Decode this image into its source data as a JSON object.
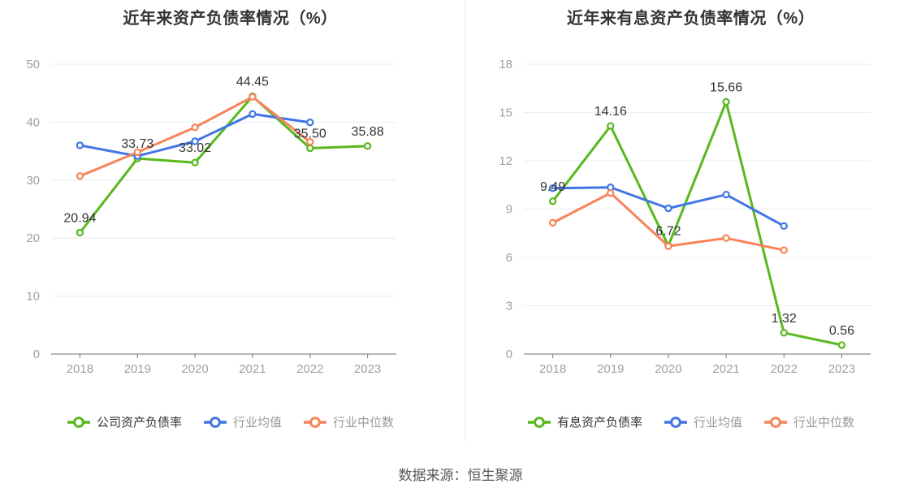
{
  "page": {
    "source_text": "数据来源：恒生聚源"
  },
  "colors": {
    "company_green": "#58b81e",
    "industry_avg_blue": "#4176e5",
    "industry_median_orange": "#f8835a",
    "grid": "#e7edf6",
    "axis": "#8c8c8c",
    "axis_label": "#9aa1a9",
    "data_label": "#333333"
  },
  "chart_data": [
    {
      "type": "line",
      "title": "近年来资产负债率情况（%）",
      "categories": [
        "2018",
        "2019",
        "2020",
        "2021",
        "2022",
        "2023"
      ],
      "ylim": [
        0,
        50
      ],
      "yticks": [
        0,
        10,
        20,
        30,
        40,
        50
      ],
      "grid": true,
      "legend_position": "bottom",
      "series": [
        {
          "name": "公司资产负债率",
          "color": "#58b81e",
          "values": [
            20.94,
            33.73,
            33.02,
            44.45,
            35.5,
            35.88
          ],
          "labels": [
            "20.94",
            "33.73",
            "33.02",
            "44.45",
            "35.50",
            "35.88"
          ]
        },
        {
          "name": "行业均值",
          "color": "#4176e5",
          "values": [
            36.0,
            34.15,
            36.7,
            41.4,
            39.95
          ]
        },
        {
          "name": "行业中位数",
          "color": "#f8835a",
          "values": [
            30.7,
            34.8,
            39.1,
            44.35,
            36.6
          ]
        }
      ]
    },
    {
      "type": "line",
      "title": "近年来有息资产负债率情况（%）",
      "categories": [
        "2018",
        "2019",
        "2020",
        "2021",
        "2022",
        "2023"
      ],
      "ylim": [
        0,
        18
      ],
      "yticks": [
        0,
        3,
        6,
        9,
        12,
        15,
        18
      ],
      "grid": true,
      "legend_position": "bottom",
      "series": [
        {
          "name": "有息资产负债率",
          "color": "#58b81e",
          "values": [
            9.49,
            14.16,
            6.72,
            15.66,
            1.32,
            0.56
          ],
          "labels": [
            "9.49",
            "14.16",
            "6.72",
            "15.66",
            "1.32",
            "0.56"
          ]
        },
        {
          "name": "行业均值",
          "color": "#4176e5",
          "values": [
            10.3,
            10.35,
            9.05,
            9.9,
            7.95
          ]
        },
        {
          "name": "行业中位数",
          "color": "#f8835a",
          "values": [
            8.15,
            10.0,
            6.7,
            7.2,
            6.45
          ]
        }
      ]
    }
  ]
}
